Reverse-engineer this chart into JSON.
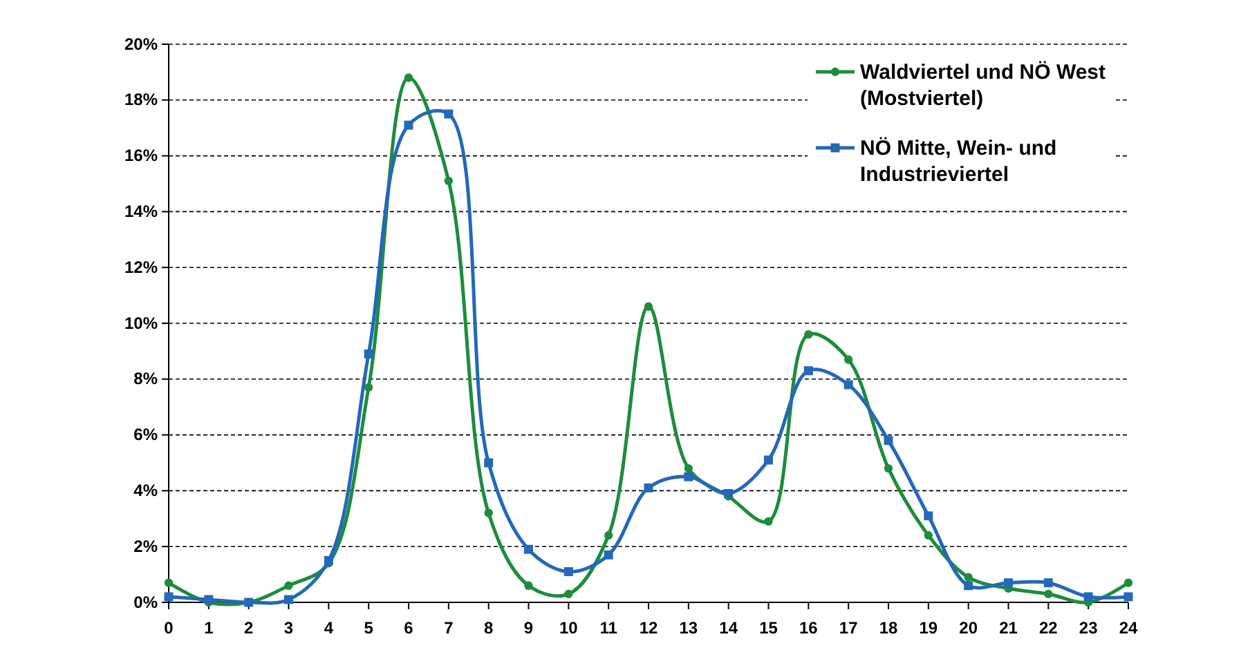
{
  "chart_data": {
    "type": "line",
    "x": [
      0,
      1,
      2,
      3,
      4,
      5,
      6,
      7,
      8,
      9,
      10,
      11,
      12,
      13,
      14,
      15,
      16,
      17,
      18,
      19,
      20,
      21,
      22,
      23,
      24
    ],
    "xlim": [
      0,
      24
    ],
    "xticks": [
      0,
      1,
      2,
      3,
      4,
      5,
      6,
      7,
      8,
      9,
      10,
      11,
      12,
      13,
      14,
      15,
      16,
      17,
      18,
      19,
      20,
      21,
      22,
      23,
      24
    ],
    "ylim": [
      0,
      20
    ],
    "yticks": [
      {
        "value": 0,
        "label": "0%"
      },
      {
        "value": 2,
        "label": "2%"
      },
      {
        "value": 4,
        "label": "4%"
      },
      {
        "value": 6,
        "label": "6%"
      },
      {
        "value": 8,
        "label": "8%"
      },
      {
        "value": 10,
        "label": "10%"
      },
      {
        "value": 12,
        "label": "12%"
      },
      {
        "value": 14,
        "label": "14%"
      },
      {
        "value": 16,
        "label": "16%"
      },
      {
        "value": 18,
        "label": "18%"
      },
      {
        "value": 20,
        "label": "20%"
      }
    ],
    "grid": "y",
    "legend": "top right",
    "series": [
      {
        "name": "Waldviertel und NÖ West (Mostviertel)",
        "color": "#1e8c3c",
        "marker": "circle",
        "values": [
          0.7,
          0.0,
          0.0,
          0.6,
          1.4,
          7.7,
          18.8,
          15.1,
          3.2,
          0.6,
          0.3,
          2.4,
          10.6,
          4.8,
          3.8,
          2.9,
          9.6,
          8.7,
          4.8,
          2.4,
          0.9,
          0.5,
          0.3,
          0.0,
          0.7
        ]
      },
      {
        "name": "NÖ Mitte, Wein- und Industrieviertel",
        "color": "#2468b8",
        "marker": "square",
        "values": [
          0.2,
          0.1,
          0.0,
          0.1,
          1.5,
          8.9,
          17.1,
          17.5,
          5.0,
          1.9,
          1.1,
          1.7,
          4.1,
          4.5,
          3.9,
          5.1,
          8.3,
          7.8,
          5.8,
          3.1,
          0.6,
          0.7,
          0.7,
          0.2,
          0.2
        ]
      }
    ]
  }
}
